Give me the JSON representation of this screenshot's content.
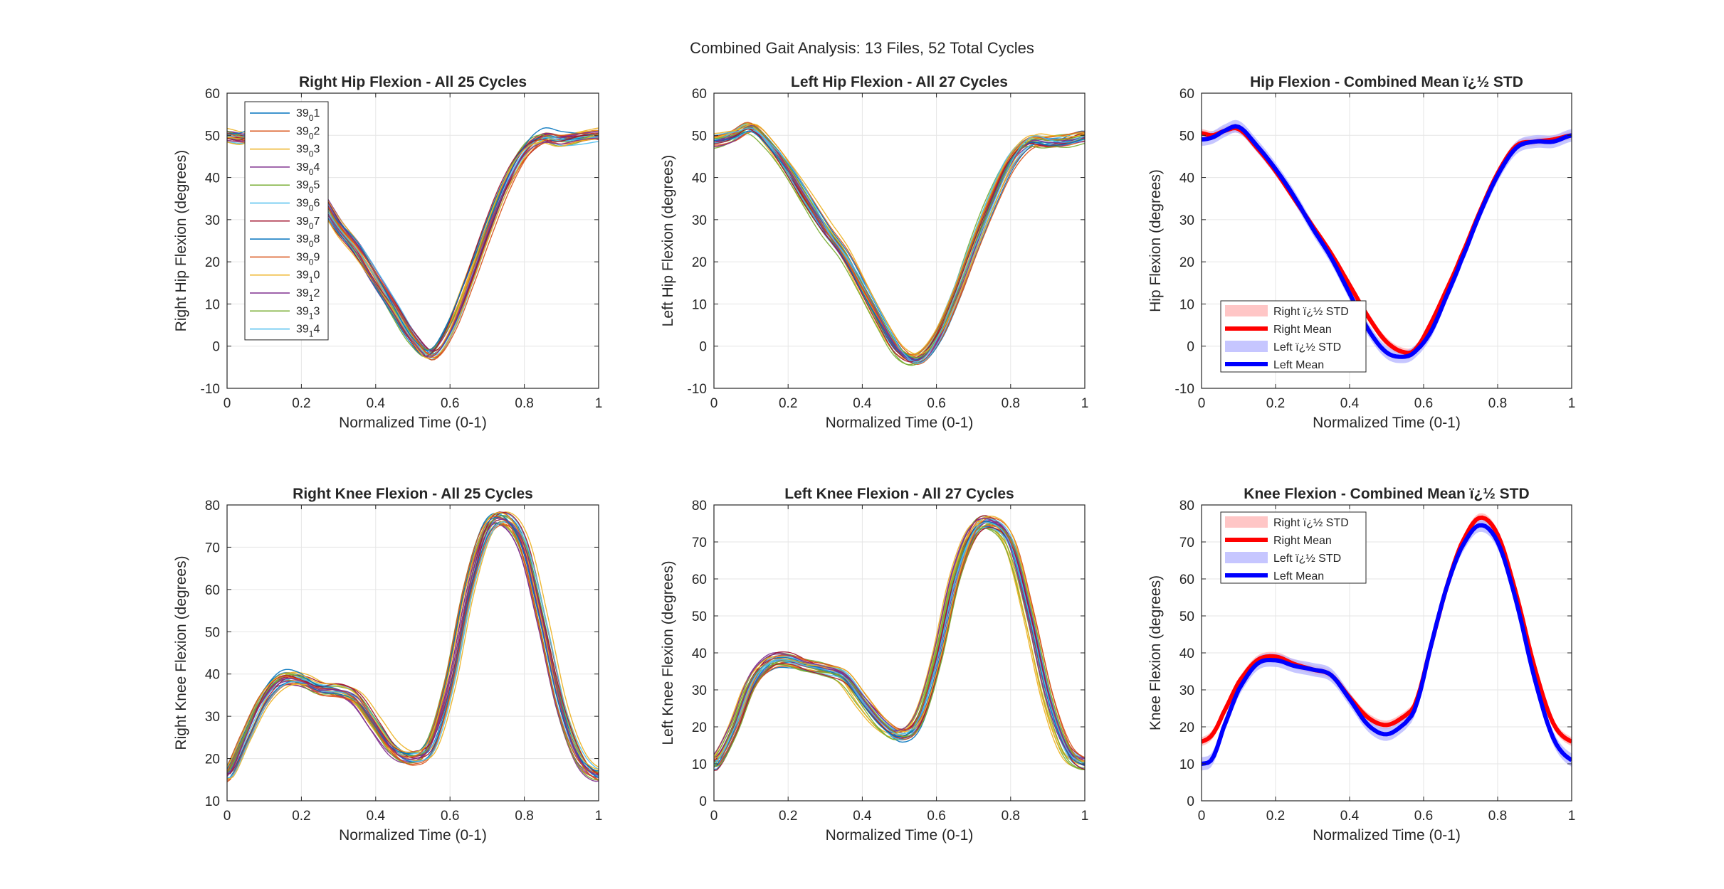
{
  "figure": {
    "suptitle": "Combined Gait Analysis: 13 Files, 52 Total Cycles",
    "colors": {
      "right": "#ff0000",
      "left": "#0000ff",
      "right_band": "#ffb3b3",
      "left_band": "#b3b3ff",
      "cycle_palette": [
        "#0072BD",
        "#D95319",
        "#EDB120",
        "#7E2F8E",
        "#77AC30",
        "#4DBEEE",
        "#A2142F"
      ]
    }
  },
  "chart_data": [
    {
      "type": "line",
      "title": "Right Hip Flexion - All 25 Cycles",
      "xlabel": "Normalized Time (0-1)",
      "ylabel": "Right Hip Flexion (degrees)",
      "xlim": [
        0,
        1
      ],
      "ylim": [
        -10,
        60
      ],
      "xticks": [
        "0",
        "0.2",
        "0.4",
        "0.6",
        "0.8",
        "1"
      ],
      "yticks": [
        "-10",
        "0",
        "10",
        "20",
        "30",
        "40",
        "50",
        "60"
      ],
      "grid": true,
      "legend_position": "top-left",
      "cycle_count": 25,
      "legend": [
        "39₀ 1",
        "39₀ 2",
        "39₀ 3",
        "39₀ 4",
        "39₀ 5",
        "39₀ 6",
        "39₀ 7",
        "39₀ 8",
        "39₀ 9",
        "39₁ 0",
        "39₁ 2",
        "39₁ 3",
        "39₁ 4"
      ],
      "mean": {
        "x": [
          0,
          0.05,
          0.1,
          0.15,
          0.2,
          0.25,
          0.3,
          0.35,
          0.4,
          0.45,
          0.5,
          0.55,
          0.6,
          0.65,
          0.7,
          0.75,
          0.8,
          0.85,
          0.9,
          0.95,
          1.0
        ],
        "y": [
          50,
          49.5,
          51,
          47,
          41.5,
          35.5,
          28.5,
          23,
          16,
          9,
          2,
          -2,
          4,
          15,
          27,
          38,
          46,
          49.5,
          49,
          49.5,
          50
        ]
      }
    },
    {
      "type": "line",
      "title": "Left Hip Flexion - All 27 Cycles",
      "xlabel": "Normalized Time (0-1)",
      "ylabel": "Left Hip Flexion (degrees)",
      "xlim": [
        0,
        1
      ],
      "ylim": [
        -10,
        60
      ],
      "xticks": [
        "0",
        "0.2",
        "0.4",
        "0.6",
        "0.8",
        "1"
      ],
      "yticks": [
        "-10",
        "0",
        "10",
        "20",
        "30",
        "40",
        "50",
        "60"
      ],
      "grid": true,
      "cycle_count": 27,
      "mean": {
        "x": [
          0,
          0.05,
          0.1,
          0.15,
          0.2,
          0.25,
          0.3,
          0.35,
          0.4,
          0.45,
          0.5,
          0.55,
          0.6,
          0.65,
          0.7,
          0.75,
          0.8,
          0.85,
          0.9,
          0.95,
          1.0
        ],
        "y": [
          49,
          50,
          52,
          48,
          42,
          35,
          28,
          22,
          14,
          6,
          -1,
          -3,
          2,
          12,
          24,
          35,
          44,
          48.5,
          48.5,
          49,
          50
        ]
      }
    },
    {
      "type": "line",
      "title": "Hip Flexion - Combined Mean ï¿½ STD",
      "xlabel": "Normalized Time (0-1)",
      "ylabel": "Hip Flexion (degrees)",
      "xlim": [
        0,
        1
      ],
      "ylim": [
        -10,
        60
      ],
      "xticks": [
        "0",
        "0.2",
        "0.4",
        "0.6",
        "0.8",
        "1"
      ],
      "yticks": [
        "-10",
        "0",
        "10",
        "20",
        "30",
        "40",
        "50",
        "60"
      ],
      "grid": true,
      "legend_position": "bottom-left",
      "legend": [
        "Right ï¿½ STD",
        "Right Mean",
        "Left ï¿½ STD",
        "Left Mean"
      ],
      "series": [
        {
          "name": "Right Mean",
          "std": 1.0,
          "x": [
            0,
            0.03,
            0.06,
            0.1,
            0.15,
            0.2,
            0.25,
            0.3,
            0.35,
            0.4,
            0.45,
            0.5,
            0.55,
            0.58,
            0.62,
            0.66,
            0.7,
            0.75,
            0.8,
            0.85,
            0.9,
            0.95,
            1.0
          ],
          "y": [
            50.5,
            50,
            51,
            51.5,
            47,
            41.5,
            35,
            28.5,
            22,
            14.5,
            7,
            1,
            -1.5,
            -0.5,
            5.5,
            13,
            21,
            31.5,
            41,
            47.5,
            48.5,
            49,
            50
          ]
        },
        {
          "name": "Left Mean",
          "std": 1.5,
          "x": [
            0,
            0.03,
            0.06,
            0.1,
            0.15,
            0.2,
            0.25,
            0.3,
            0.35,
            0.4,
            0.45,
            0.5,
            0.55,
            0.58,
            0.62,
            0.66,
            0.7,
            0.75,
            0.8,
            0.85,
            0.9,
            0.95,
            1.0
          ],
          "y": [
            49,
            49.5,
            51,
            52,
            47.5,
            42,
            35.5,
            28,
            21,
            12.5,
            4,
            -1.5,
            -2.5,
            -1,
            3.5,
            11.5,
            20,
            31,
            40.5,
            47,
            48.5,
            48.5,
            50
          ]
        }
      ]
    },
    {
      "type": "line",
      "title": "Right Knee Flexion - All 25 Cycles",
      "xlabel": "Normalized Time (0-1)",
      "ylabel": "Right Knee Flexion (degrees)",
      "xlim": [
        0,
        1
      ],
      "ylim": [
        10,
        80
      ],
      "xticks": [
        "0",
        "0.2",
        "0.4",
        "0.6",
        "0.8",
        "1"
      ],
      "yticks": [
        "10",
        "20",
        "30",
        "40",
        "50",
        "60",
        "70",
        "80"
      ],
      "grid": true,
      "cycle_count": 25,
      "mean": {
        "x": [
          0,
          0.05,
          0.1,
          0.15,
          0.2,
          0.25,
          0.3,
          0.35,
          0.4,
          0.45,
          0.5,
          0.55,
          0.6,
          0.65,
          0.7,
          0.75,
          0.8,
          0.85,
          0.9,
          0.95,
          1.0
        ],
        "y": [
          16,
          25,
          34,
          38.5,
          38.5,
          36.5,
          36,
          34,
          28,
          22,
          20,
          23,
          38,
          60,
          74,
          76.5,
          70,
          52,
          32,
          20,
          16
        ]
      }
    },
    {
      "type": "line",
      "title": "Left Knee Flexion - All 27 Cycles",
      "xlabel": "Normalized Time (0-1)",
      "ylabel": "Left Knee Flexion (degrees)",
      "xlim": [
        0,
        1
      ],
      "ylim": [
        0,
        80
      ],
      "xticks": [
        "0",
        "0.2",
        "0.4",
        "0.6",
        "0.8",
        "1"
      ],
      "yticks": [
        "0",
        "10",
        "20",
        "30",
        "40",
        "50",
        "60",
        "70",
        "80"
      ],
      "grid": true,
      "cycle_count": 27,
      "mean": {
        "x": [
          0,
          0.05,
          0.1,
          0.15,
          0.2,
          0.25,
          0.3,
          0.35,
          0.4,
          0.45,
          0.5,
          0.55,
          0.6,
          0.65,
          0.7,
          0.75,
          0.8,
          0.85,
          0.9,
          0.95,
          1.0
        ],
        "y": [
          10,
          19,
          32,
          37.5,
          38,
          36.5,
          35.5,
          33.5,
          27,
          21,
          18,
          22,
          38,
          60,
          73,
          75,
          69,
          50,
          28,
          14,
          10
        ]
      }
    },
    {
      "type": "line",
      "title": "Knee Flexion - Combined Mean ï¿½ STD",
      "xlabel": "Normalized Time (0-1)",
      "ylabel": "Knee Flexion (degrees)",
      "xlim": [
        0,
        1
      ],
      "ylim": [
        0,
        80
      ],
      "xticks": [
        "0",
        "0.2",
        "0.4",
        "0.6",
        "0.8",
        "1"
      ],
      "yticks": [
        "0",
        "10",
        "20",
        "30",
        "40",
        "50",
        "60",
        "70",
        "80"
      ],
      "grid": true,
      "legend_position": "top-left",
      "legend": [
        "Right ï¿½ STD",
        "Right Mean",
        "Left ï¿½ STD",
        "Left Mean"
      ],
      "series": [
        {
          "name": "Right Mean",
          "std": 1.2,
          "x": [
            0,
            0.03,
            0.06,
            0.1,
            0.15,
            0.2,
            0.25,
            0.3,
            0.35,
            0.4,
            0.45,
            0.5,
            0.55,
            0.58,
            0.62,
            0.66,
            0.7,
            0.75,
            0.8,
            0.85,
            0.9,
            0.95,
            1.0
          ],
          "y": [
            16,
            18,
            24,
            32,
            38,
            39,
            37,
            35.5,
            34,
            28,
            22.5,
            20.5,
            23,
            27,
            42,
            57,
            69,
            76.5,
            72,
            56,
            36,
            21,
            16
          ]
        },
        {
          "name": "Left Mean",
          "std": 1.8,
          "x": [
            0,
            0.03,
            0.06,
            0.1,
            0.15,
            0.2,
            0.25,
            0.3,
            0.35,
            0.4,
            0.45,
            0.5,
            0.55,
            0.58,
            0.62,
            0.66,
            0.7,
            0.75,
            0.8,
            0.85,
            0.9,
            0.95,
            1.0
          ],
          "y": [
            10,
            11.5,
            20,
            30,
            37,
            38,
            36.5,
            35.5,
            34,
            27.5,
            20.5,
            18,
            21,
            26,
            42,
            57,
            68,
            74.5,
            70,
            54,
            33,
            17,
            11
          ]
        }
      ]
    }
  ]
}
